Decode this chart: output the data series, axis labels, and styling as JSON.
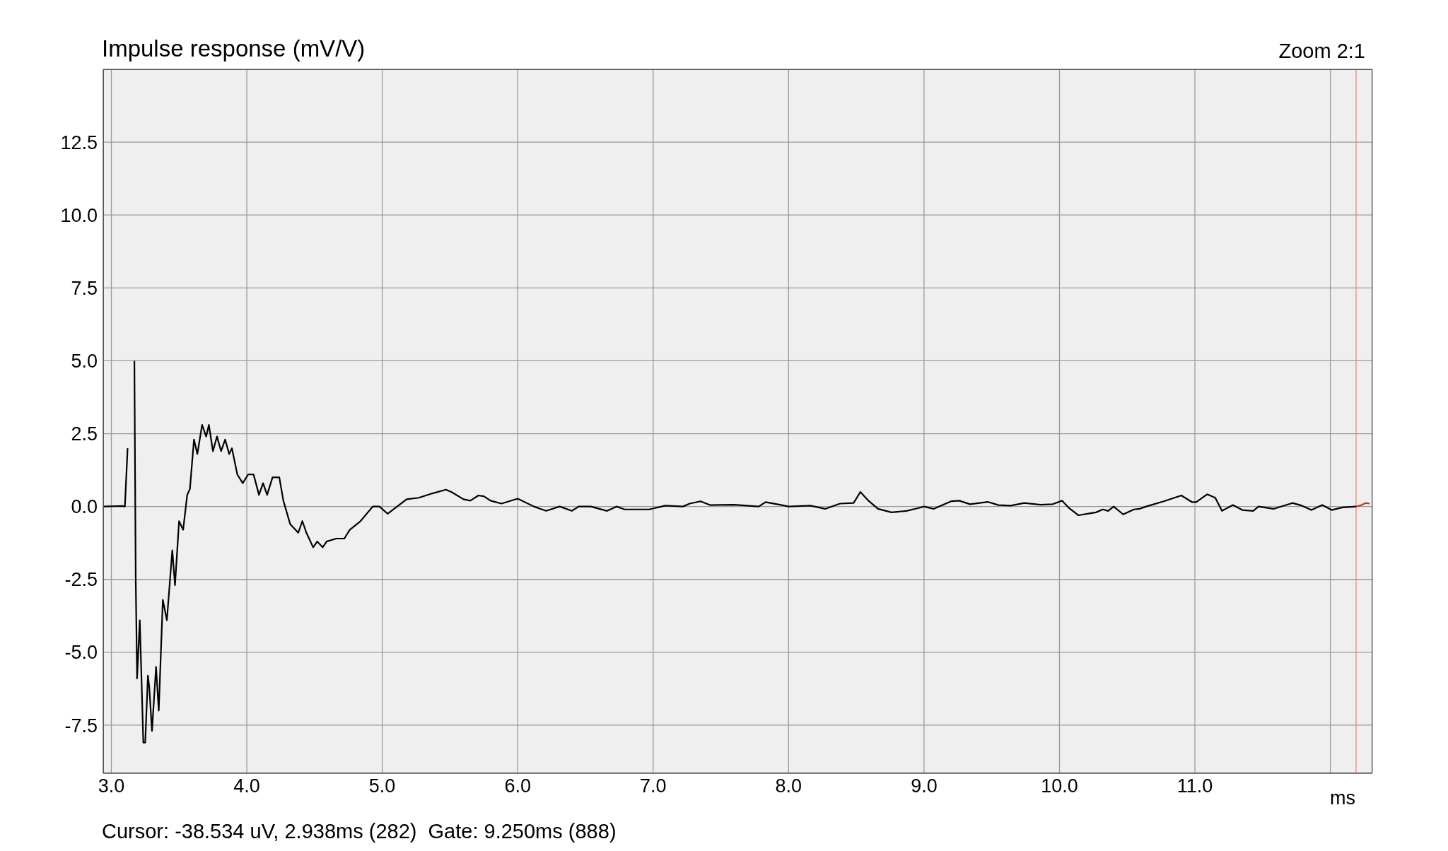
{
  "chart_data": {
    "type": "line",
    "title": "Impulse response (mV/V)",
    "xlabel": "ms",
    "annotations": [
      "Zoom 2:1",
      "Cursor: -38.534 uV, 2.938ms (282)  Gate: 9.250ms (888)"
    ],
    "xlim": [
      2.94,
      12.31
    ],
    "xticks": [
      {
        "value": 3,
        "label": "3.0"
      },
      {
        "value": 4,
        "label": "4.0"
      },
      {
        "value": 5,
        "label": "5.0"
      },
      {
        "value": 6,
        "label": "6.0"
      },
      {
        "value": 7,
        "label": "7.0"
      },
      {
        "value": 8,
        "label": "8.0"
      },
      {
        "value": 9,
        "label": "9.0"
      },
      {
        "value": 10,
        "label": "10.0"
      },
      {
        "value": 11,
        "label": "11.0"
      },
      {
        "value": 12,
        "label": null
      }
    ],
    "ylim": [
      -9.15,
      15
    ],
    "yticks": [
      {
        "value": -7.5,
        "label": "-7.5"
      },
      {
        "value": -5,
        "label": "-5.0"
      },
      {
        "value": -2.5,
        "label": "-2.5"
      },
      {
        "value": 0,
        "label": "0.0"
      },
      {
        "value": 2.5,
        "label": "2.5"
      },
      {
        "value": 5,
        "label": "5.0"
      },
      {
        "value": 7.5,
        "label": "7.5"
      },
      {
        "value": 10,
        "label": "10.0"
      },
      {
        "value": 12.5,
        "label": "12.5"
      }
    ],
    "grid": true,
    "ref_lines": [
      {
        "axis": "x",
        "value": 12.19,
        "color": "#e08878"
      }
    ],
    "series": [
      {
        "color": "#000000",
        "x": [
          2.94,
          3.08,
          3.1,
          3.12,
          3.135,
          3.155,
          3.17,
          3.18,
          3.19,
          3.21,
          3.22,
          3.236,
          3.25,
          3.27,
          3.28,
          3.3,
          3.33,
          3.35,
          3.38,
          3.41,
          3.45,
          3.47,
          3.5,
          3.53,
          3.56,
          3.58,
          3.61,
          3.635,
          3.67,
          3.7,
          3.72,
          3.75,
          3.78,
          3.81,
          3.84,
          3.87,
          3.89,
          3.93,
          3.97,
          4.01,
          4.05,
          4.09,
          4.12,
          4.15,
          4.19,
          4.24,
          4.27,
          4.32,
          4.38,
          4.41,
          4.44,
          4.49,
          4.52,
          4.56,
          4.59,
          4.66,
          4.72,
          4.76,
          4.84,
          4.93,
          4.98,
          5.04,
          5.11,
          5.18,
          5.27,
          5.37,
          5.47,
          5.51,
          5.6,
          5.65,
          5.71,
          5.75,
          5.8,
          5.88,
          6.0,
          6.12,
          6.21,
          6.31,
          6.4,
          6.45,
          6.54,
          6.66,
          6.73,
          6.79,
          6.97,
          7.09,
          7.22,
          7.27,
          7.35,
          7.42,
          7.6,
          7.78,
          7.83,
          7.95,
          8.0,
          8.16,
          8.27,
          8.38,
          8.48,
          8.53,
          8.59,
          8.66,
          8.76,
          8.87,
          8.96,
          9.0,
          9.07,
          9.2,
          9.26,
          9.34,
          9.47,
          9.55,
          9.64,
          9.74,
          9.86,
          9.95,
          10.02,
          10.07,
          10.14,
          10.23,
          10.27,
          10.32,
          10.36,
          10.4,
          10.47,
          10.55,
          10.59,
          10.64,
          10.77,
          10.9,
          10.98,
          11.01,
          11.09,
          11.15,
          11.2,
          11.28,
          11.35,
          11.43,
          11.47,
          11.58,
          11.72,
          11.79,
          11.86,
          11.94,
          12.01,
          12.09,
          12.19
        ],
        "values": [
          0,
          0.02,
          0,
          2,
          null,
          null,
          5,
          -2.5,
          -5.9,
          -3.9,
          -5.5,
          -8.1,
          -8.1,
          -5.8,
          -6.2,
          -7.7,
          -5.5,
          -7,
          -3.2,
          -3.9,
          -1.5,
          -2.7,
          -0.5,
          -0.8,
          0.4,
          0.6,
          2.3,
          1.8,
          2.8,
          2.4,
          2.8,
          1.9,
          2.4,
          1.9,
          2.3,
          1.8,
          2,
          1.1,
          0.8,
          1.1,
          1.1,
          0.4,
          0.8,
          0.4,
          1,
          1,
          0.2,
          -0.6,
          -0.9,
          -0.5,
          -0.9,
          -1.4,
          -1.2,
          -1.4,
          -1.2,
          -1.1,
          -1.1,
          -0.8,
          -0.5,
          0,
          0,
          -0.25,
          0,
          0.25,
          0.3,
          0.45,
          0.58,
          0.5,
          0.25,
          0.2,
          0.38,
          0.35,
          0.2,
          0.1,
          0.27,
          0,
          -0.15,
          0,
          -0.15,
          0,
          0,
          -0.15,
          0,
          -0.1,
          -0.1,
          0.03,
          0,
          0.1,
          0.18,
          0.05,
          0.06,
          0,
          0.15,
          0.05,
          0,
          0.03,
          -0.08,
          0.1,
          0.12,
          0.5,
          0.2,
          -0.08,
          -0.2,
          -0.15,
          -0.05,
          0,
          -0.08,
          0.18,
          0.2,
          0.08,
          0.16,
          0.05,
          0.03,
          0.12,
          0.06,
          0.08,
          0.2,
          -0.05,
          -0.3,
          -0.23,
          -0.2,
          -0.1,
          -0.15,
          0,
          -0.27,
          -0.1,
          -0.08,
          0,
          0.18,
          0.38,
          0.15,
          0.15,
          0.42,
          0.3,
          -0.15,
          0.05,
          -0.12,
          -0.15,
          0,
          -0.08,
          0.12,
          0.03,
          -0.12,
          0.05,
          -0.12,
          -0.03,
          0
        ]
      },
      {
        "color": "#d03020",
        "x": [
          12.19,
          12.23,
          12.26,
          12.29
        ],
        "values": [
          0,
          0.05,
          0.12,
          0.1
        ]
      }
    ]
  }
}
